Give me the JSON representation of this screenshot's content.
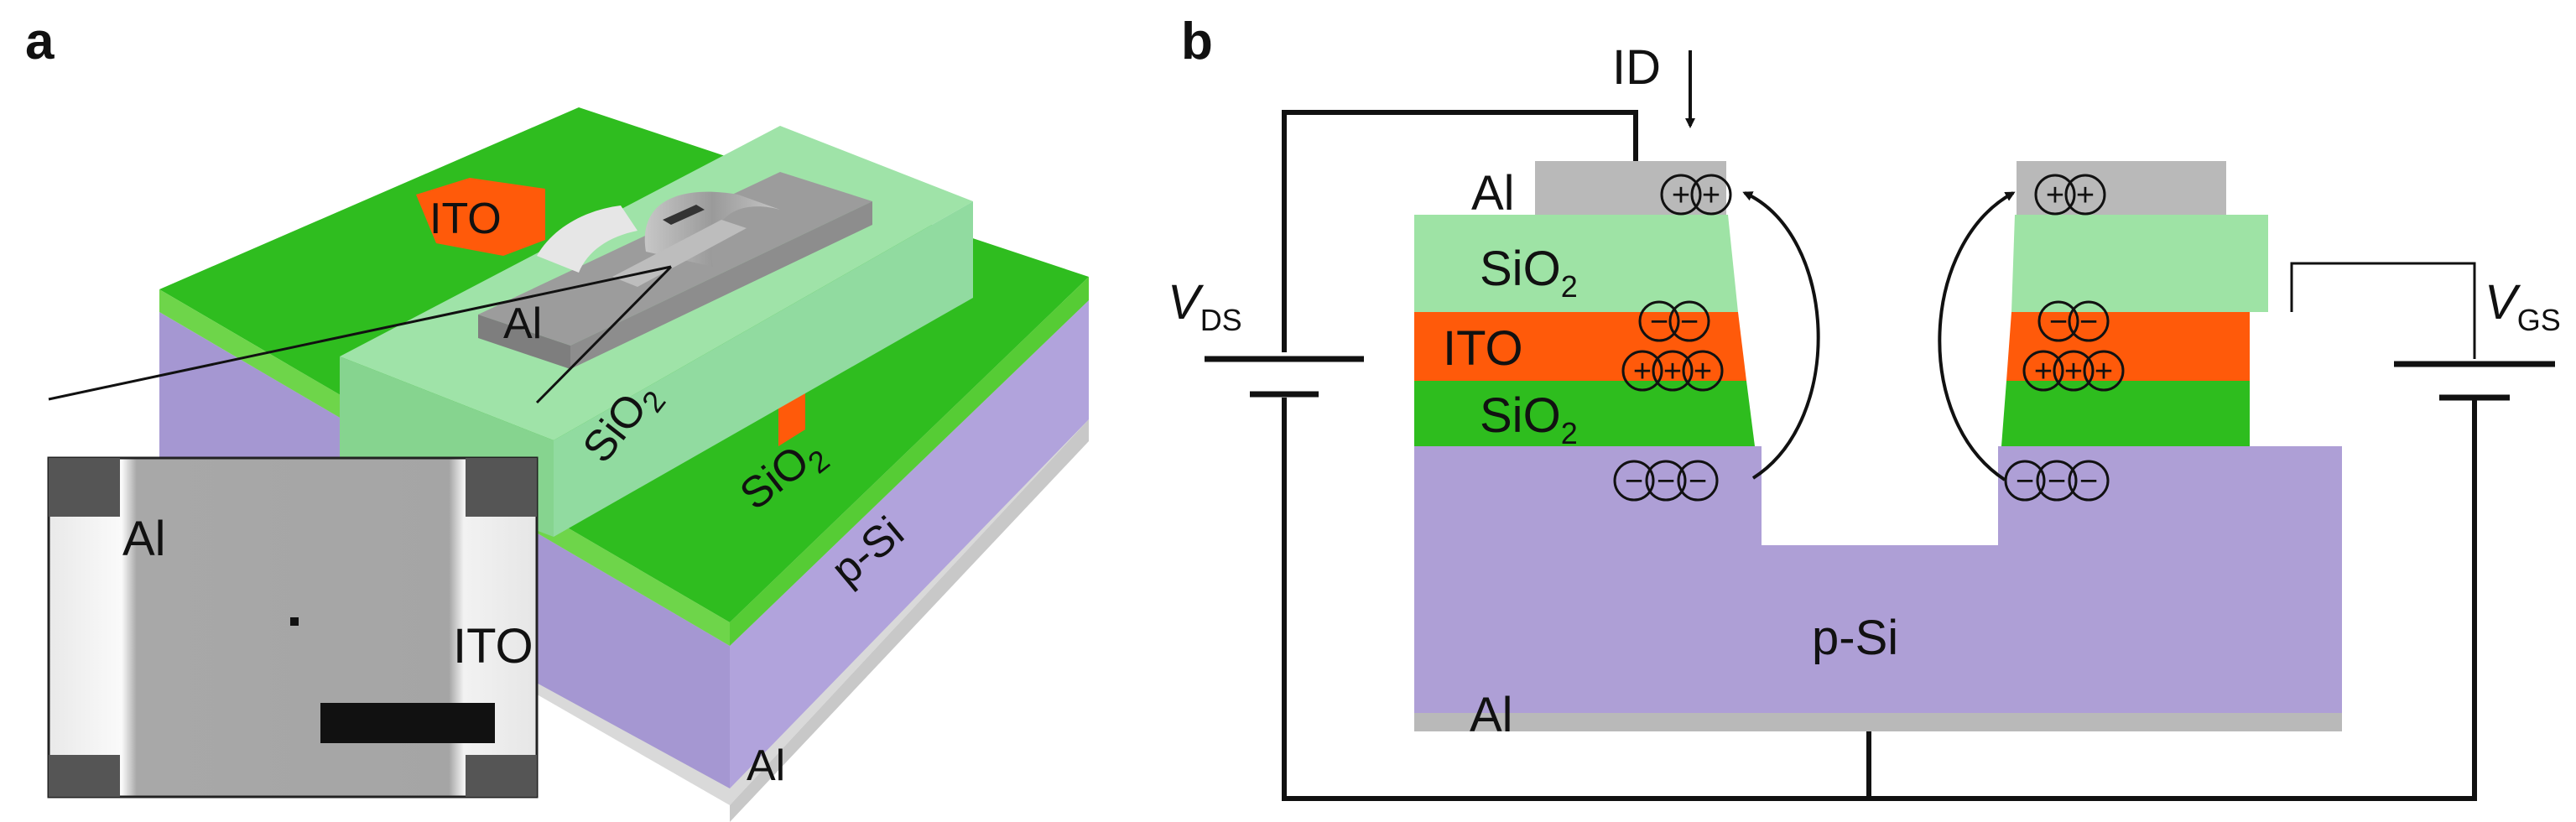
{
  "panel_a": {
    "letter": "a",
    "labels": {
      "ito_top": "ITO",
      "al_bridge": "Al",
      "sio2_stack_main": "SiO",
      "sio2_stack_sub": "2",
      "sio2_base_main": "SiO",
      "sio2_base_sub": "2",
      "psi": "p-Si",
      "al_bottom": "Al"
    },
    "inset": {
      "al": "Al",
      "ito": "ITO"
    }
  },
  "panel_b": {
    "letter": "b",
    "current": "ID",
    "vds_main": "V",
    "vds_sub": "DS",
    "vgs_main": "V",
    "vgs_sub": "GS",
    "layers": {
      "al_contact": "Al",
      "sio2_top_main": "SiO",
      "sio2_top_sub": "2",
      "ito": "ITO",
      "sio2_bottom_main": "SiO",
      "sio2_bottom_sub": "2",
      "psi": "p-Si",
      "al_back": "Al"
    },
    "charges": {
      "plus": "+",
      "minus": "−"
    }
  },
  "colors": {
    "green_dark": "#2ebd1e",
    "green_light": "#9ee3a5",
    "orange": "#ff5a0a",
    "purple": "#ae9fd6",
    "gray": "#b9b9b9"
  }
}
